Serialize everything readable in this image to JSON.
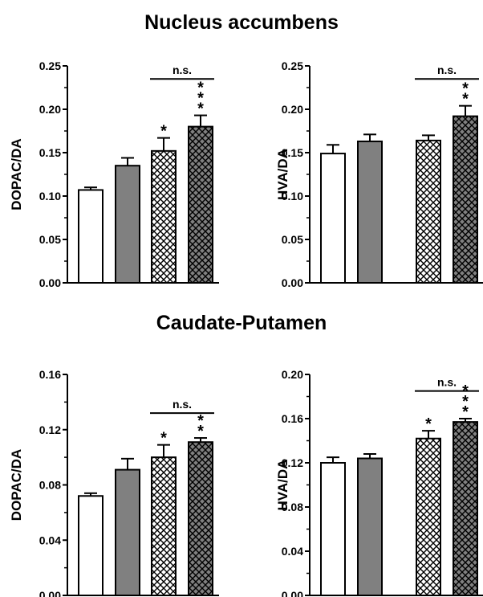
{
  "titles": {
    "top": "Nucleus accumbens",
    "bottom": "Caudate-Putamen"
  },
  "colors": {
    "white": "#ffffff",
    "gray": "#808080",
    "hatch_light_bg": "#ffffff",
    "hatch_dark_bg": "#808080",
    "axis": "#000000"
  },
  "chart_data": [
    {
      "type": "bar",
      "ylabel": "DOPAC/DA",
      "ylim": [
        0,
        0.25
      ],
      "yticks": [
        "0.00",
        "0.05",
        "0.10",
        "0.15",
        "0.20",
        "0.25"
      ],
      "values": [
        0.107,
        0.135,
        0.152,
        0.18
      ],
      "errors": [
        0.003,
        0.009,
        0.015,
        0.013
      ],
      "fills": [
        "white",
        "gray",
        "hatch-light",
        "hatch-dark"
      ],
      "significance": [
        "",
        "",
        "*",
        "***"
      ],
      "ns_label": "n.s.",
      "ns_between": [
        2,
        3
      ],
      "ns_y": 0.235
    },
    {
      "type": "bar",
      "ylabel": "HVA/DA",
      "ylim": [
        0,
        0.25
      ],
      "yticks": [
        "0.00",
        "0.05",
        "0.10",
        "0.15",
        "0.20",
        "0.25"
      ],
      "values": [
        0.149,
        0.163,
        0.164,
        0.192
      ],
      "errors": [
        0.01,
        0.008,
        0.006,
        0.012
      ],
      "fills": [
        "white",
        "gray",
        "hatch-light",
        "hatch-dark"
      ],
      "significance": [
        "",
        "",
        "",
        "**"
      ],
      "ns_label": "n.s.",
      "ns_between": [
        2,
        3
      ],
      "ns_y": 0.235
    },
    {
      "type": "bar",
      "ylabel": "DOPAC/DA",
      "ylim": [
        0,
        0.16
      ],
      "yticks": [
        "0.00",
        "0.04",
        "0.08",
        "0.12",
        "0.16"
      ],
      "values": [
        0.072,
        0.091,
        0.1,
        0.111
      ],
      "errors": [
        0.002,
        0.008,
        0.009,
        0.003
      ],
      "fills": [
        "white",
        "gray",
        "hatch-light",
        "hatch-dark"
      ],
      "significance": [
        "",
        "",
        "*",
        "**"
      ],
      "ns_label": "n.s.",
      "ns_between": [
        2,
        3
      ],
      "ns_y": 0.132
    },
    {
      "type": "bar",
      "ylabel": "HVA/DA",
      "ylim": [
        0,
        0.2
      ],
      "yticks": [
        "0.00",
        "0.04",
        "0.08",
        "0.12",
        "0.16",
        "0.20"
      ],
      "values": [
        0.12,
        0.124,
        0.142,
        0.157
      ],
      "errors": [
        0.005,
        0.004,
        0.007,
        0.003
      ],
      "fills": [
        "white",
        "gray",
        "hatch-light",
        "hatch-dark"
      ],
      "significance": [
        "",
        "",
        "*",
        "***"
      ],
      "ns_label": "n.s.",
      "ns_between": [
        2,
        3
      ],
      "ns_y": 0.185
    }
  ]
}
